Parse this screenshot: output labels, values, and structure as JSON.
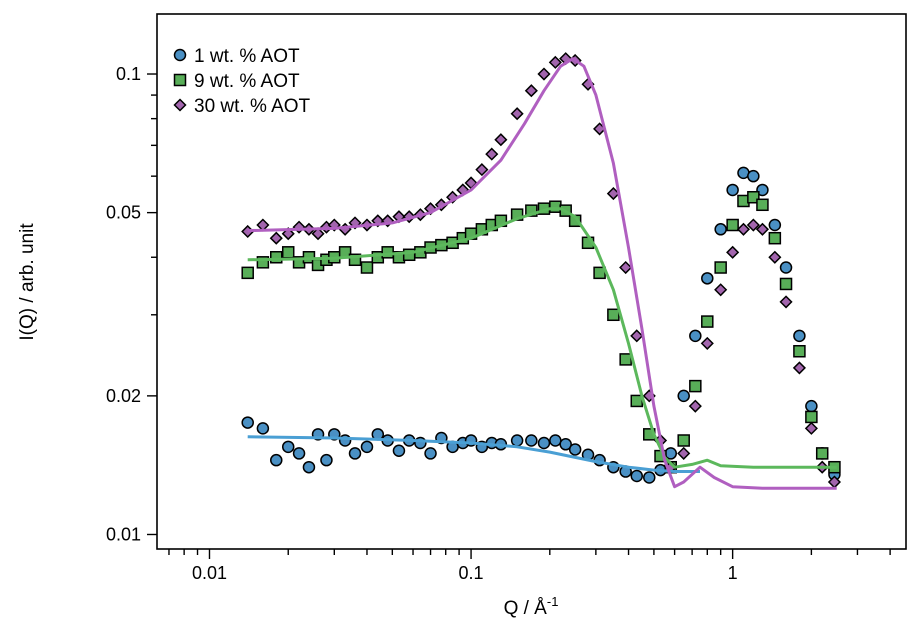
{
  "chart_data": {
    "type": "scatter",
    "xlabel": "Q / Å",
    "xlabel_sup": "-1",
    "ylabel": "I(Q) / arb. unit",
    "xscale": "log",
    "yscale": "log",
    "xlim": [
      0.0063,
      4.6
    ],
    "ylim": [
      0.0093,
      0.135
    ],
    "x_ticks": [
      {
        "value": 0.01,
        "label": "0.01"
      },
      {
        "value": 0.1,
        "label": "0.1"
      },
      {
        "value": 1,
        "label": "1"
      }
    ],
    "y_ticks": [
      {
        "value": 0.01,
        "label": "0.01"
      },
      {
        "value": 0.02,
        "label": "0.02"
      },
      {
        "value": 0.05,
        "label": "0.05"
      },
      {
        "value": 0.1,
        "label": "0.1"
      }
    ],
    "grid": false,
    "legend_position": "top-left",
    "series": [
      {
        "name": "1 wt. % AOT",
        "marker": "circle",
        "color": "#4a90c4",
        "fit_color": "#4a9fd4",
        "data_x": [
          0.014,
          0.016,
          0.018,
          0.02,
          0.022,
          0.024,
          0.026,
          0.028,
          0.03,
          0.033,
          0.036,
          0.04,
          0.044,
          0.048,
          0.053,
          0.058,
          0.064,
          0.07,
          0.077,
          0.085,
          0.093,
          0.1,
          0.11,
          0.12,
          0.13,
          0.15,
          0.17,
          0.19,
          0.21,
          0.23,
          0.25,
          0.28,
          0.31,
          0.35,
          0.39,
          0.43,
          0.48,
          0.53,
          0.58,
          0.65,
          0.72,
          0.8,
          0.9,
          1.0,
          1.1,
          1.2,
          1.3,
          1.45,
          1.6,
          1.8,
          2.0,
          2.2,
          2.45
        ],
        "data_y": [
          0.0175,
          0.017,
          0.0145,
          0.0155,
          0.015,
          0.014,
          0.0165,
          0.0145,
          0.0165,
          0.016,
          0.015,
          0.0155,
          0.0165,
          0.016,
          0.0152,
          0.016,
          0.0158,
          0.015,
          0.0162,
          0.0155,
          0.0158,
          0.016,
          0.0155,
          0.0158,
          0.0157,
          0.016,
          0.016,
          0.0158,
          0.016,
          0.0157,
          0.0153,
          0.0149,
          0.0145,
          0.014,
          0.0137,
          0.0134,
          0.0133,
          0.0138,
          0.015,
          0.02,
          0.027,
          0.036,
          0.046,
          0.056,
          0.061,
          0.06,
          0.056,
          0.047,
          0.038,
          0.027,
          0.019,
          0.015,
          0.0135
        ],
        "fit_x": [
          0.014,
          0.03,
          0.06,
          0.1,
          0.15,
          0.2,
          0.25,
          0.3,
          0.4,
          0.5,
          0.6,
          0.75
        ],
        "fit_y": [
          0.0163,
          0.0162,
          0.016,
          0.0158,
          0.0155,
          0.0151,
          0.0147,
          0.0144,
          0.014,
          0.0138,
          0.0137,
          0.0137
        ]
      },
      {
        "name": "9 wt. % AOT",
        "marker": "square",
        "color": "#58ae58",
        "fit_color": "#5cb85c",
        "data_x": [
          0.014,
          0.016,
          0.018,
          0.02,
          0.022,
          0.024,
          0.026,
          0.028,
          0.03,
          0.033,
          0.036,
          0.04,
          0.044,
          0.048,
          0.053,
          0.058,
          0.064,
          0.07,
          0.077,
          0.085,
          0.093,
          0.1,
          0.11,
          0.12,
          0.13,
          0.15,
          0.17,
          0.19,
          0.21,
          0.23,
          0.25,
          0.28,
          0.31,
          0.35,
          0.39,
          0.43,
          0.48,
          0.53,
          0.58,
          0.65,
          0.72,
          0.8,
          0.9,
          1.0,
          1.1,
          1.2,
          1.3,
          1.45,
          1.6,
          1.8,
          2.0,
          2.2,
          2.45
        ],
        "data_y": [
          0.037,
          0.039,
          0.04,
          0.041,
          0.039,
          0.04,
          0.0385,
          0.0395,
          0.04,
          0.041,
          0.0395,
          0.038,
          0.04,
          0.041,
          0.04,
          0.0405,
          0.041,
          0.042,
          0.0425,
          0.043,
          0.044,
          0.045,
          0.046,
          0.047,
          0.048,
          0.0495,
          0.0505,
          0.051,
          0.0515,
          0.0505,
          0.048,
          0.043,
          0.037,
          0.03,
          0.024,
          0.0195,
          0.0165,
          0.0148,
          0.014,
          0.016,
          0.021,
          0.029,
          0.038,
          0.047,
          0.053,
          0.054,
          0.052,
          0.044,
          0.035,
          0.025,
          0.018,
          0.015,
          0.014
        ],
        "fit_x": [
          0.014,
          0.03,
          0.06,
          0.1,
          0.15,
          0.2,
          0.22,
          0.25,
          0.3,
          0.35,
          0.4,
          0.45,
          0.5,
          0.55,
          0.6,
          0.7,
          0.8,
          0.9,
          1.2,
          1.6,
          2.5
        ],
        "fit_y": [
          0.0395,
          0.0398,
          0.041,
          0.044,
          0.0485,
          0.051,
          0.051,
          0.049,
          0.042,
          0.034,
          0.026,
          0.02,
          0.0165,
          0.0147,
          0.014,
          0.0142,
          0.0145,
          0.0141,
          0.014,
          0.014,
          0.014
        ]
      },
      {
        "name": "30 wt. % AOT",
        "marker": "diamond",
        "color": "#a265ad",
        "fit_color": "#b05fc0",
        "data_x": [
          0.014,
          0.016,
          0.018,
          0.02,
          0.022,
          0.024,
          0.026,
          0.028,
          0.03,
          0.033,
          0.036,
          0.04,
          0.044,
          0.048,
          0.053,
          0.058,
          0.064,
          0.07,
          0.077,
          0.085,
          0.093,
          0.1,
          0.11,
          0.12,
          0.13,
          0.15,
          0.17,
          0.19,
          0.21,
          0.23,
          0.25,
          0.28,
          0.31,
          0.35,
          0.39,
          0.43,
          0.48,
          0.53,
          0.58,
          0.65,
          0.72,
          0.8,
          0.9,
          1.0,
          1.1,
          1.2,
          1.3,
          1.45,
          1.6,
          1.8,
          2.0,
          2.2,
          2.45
        ],
        "data_y": [
          0.0455,
          0.047,
          0.044,
          0.045,
          0.0465,
          0.046,
          0.045,
          0.0465,
          0.047,
          0.046,
          0.0475,
          0.047,
          0.048,
          0.048,
          0.049,
          0.049,
          0.0495,
          0.051,
          0.052,
          0.054,
          0.056,
          0.058,
          0.062,
          0.067,
          0.072,
          0.082,
          0.092,
          0.1,
          0.106,
          0.108,
          0.107,
          0.095,
          0.076,
          0.055,
          0.038,
          0.027,
          0.02,
          0.016,
          0.014,
          0.015,
          0.019,
          0.026,
          0.034,
          0.041,
          0.046,
          0.047,
          0.046,
          0.04,
          0.032,
          0.023,
          0.017,
          0.014,
          0.013
        ],
        "fit_x": [
          0.014,
          0.03,
          0.05,
          0.07,
          0.1,
          0.13,
          0.16,
          0.19,
          0.22,
          0.245,
          0.27,
          0.3,
          0.35,
          0.4,
          0.45,
          0.5,
          0.55,
          0.6,
          0.65,
          0.75,
          0.85,
          1.0,
          1.3,
          1.6,
          2.5
        ],
        "fit_y": [
          0.0457,
          0.0462,
          0.0475,
          0.05,
          0.056,
          0.065,
          0.078,
          0.092,
          0.104,
          0.108,
          0.104,
          0.09,
          0.064,
          0.042,
          0.028,
          0.019,
          0.0145,
          0.0127,
          0.013,
          0.014,
          0.0133,
          0.0127,
          0.0126,
          0.0126,
          0.0126
        ]
      }
    ]
  }
}
